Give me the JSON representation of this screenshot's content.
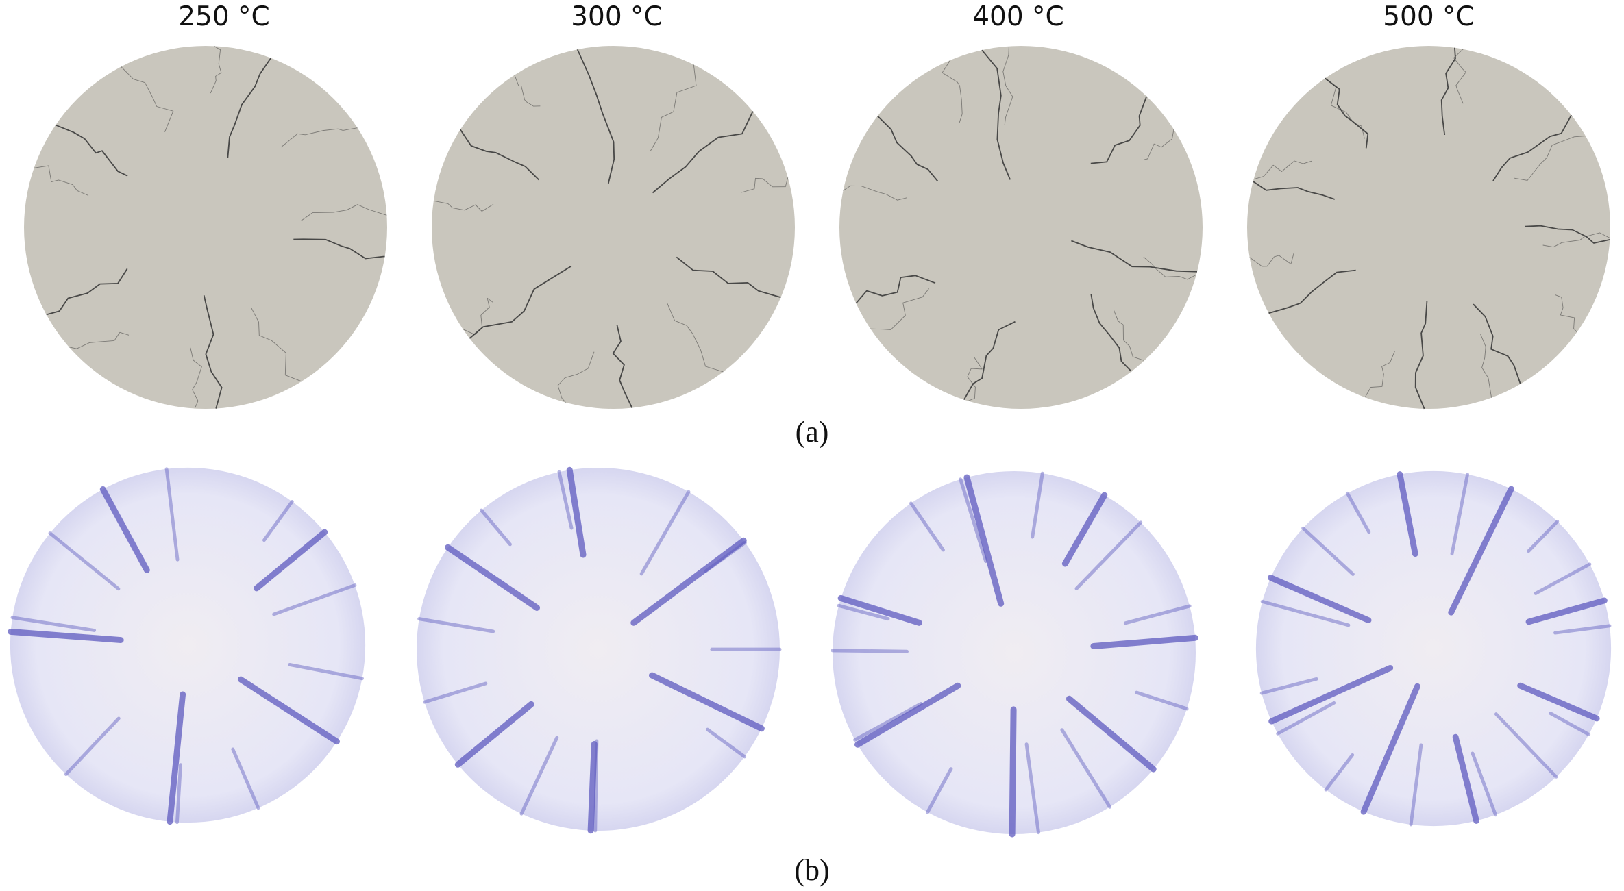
{
  "temperatures": [
    "250 °C",
    "300 °C",
    "400 °C",
    "500 °C"
  ],
  "captions": {
    "a": "(a)",
    "b": "(b)"
  },
  "colors": {
    "simulated_disc": "#c9c6bd",
    "simulated_crack": "#3a3a3a",
    "experimental_disc": "#ecebf5",
    "experimental_crack": "#5d5abf"
  }
}
